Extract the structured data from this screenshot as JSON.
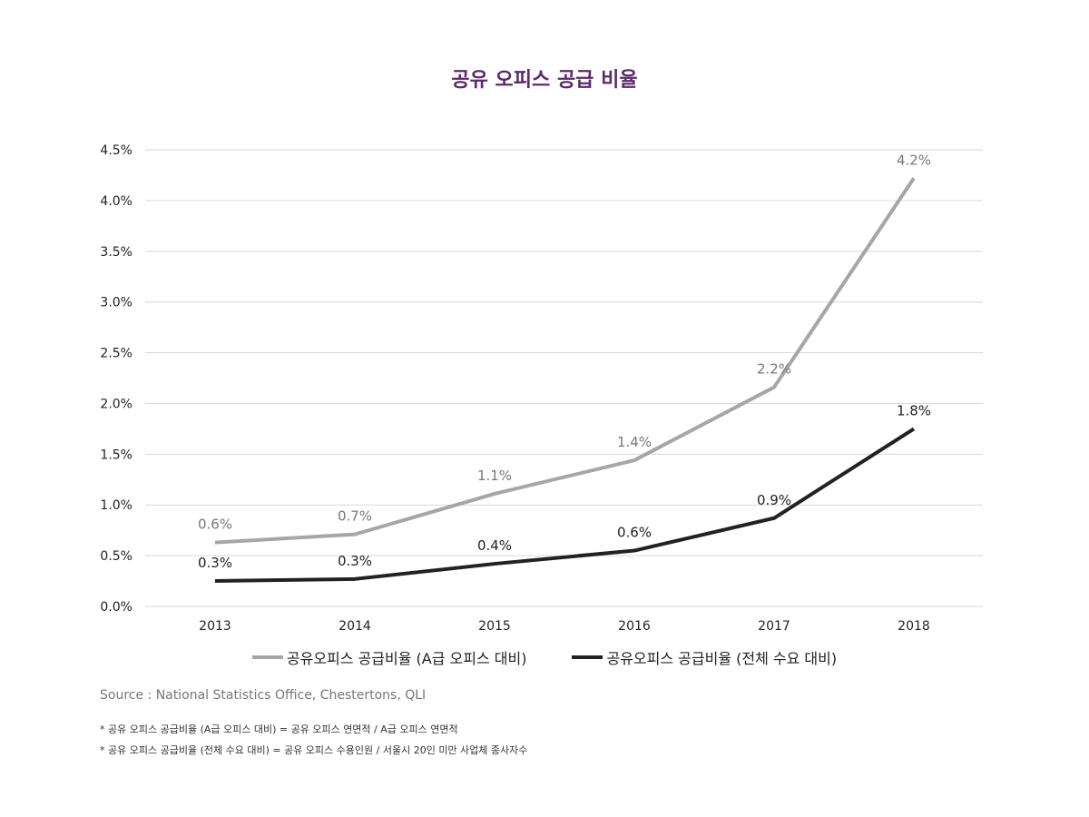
{
  "chart_data": {
    "type": "line",
    "title": "공유 오피스 공급 비율",
    "categories": [
      "2013",
      "2014",
      "2015",
      "2016",
      "2017",
      "2018"
    ],
    "ylim": [
      0,
      4.5
    ],
    "yticks": [
      "0.0%",
      "0.5%",
      "1.0%",
      "1.5%",
      "2.0%",
      "2.5%",
      "3.0%",
      "3.5%",
      "4.0%",
      "4.5%"
    ],
    "grid": true,
    "legend_position": "bottom",
    "series": [
      {
        "name": "공유오피스 공급비율 (A급 오피스 대비)",
        "color": "#a6a6a6",
        "values": [
          0.63,
          0.71,
          1.11,
          1.44,
          2.16,
          4.22
        ],
        "labels": [
          "0.6%",
          "0.7%",
          "1.1%",
          "1.4%",
          "2.2%",
          "4.2%"
        ]
      },
      {
        "name": "공유오피스 공급비율 (전체 수요 대비)",
        "color": "#222222",
        "values": [
          0.25,
          0.27,
          0.42,
          0.55,
          0.87,
          1.75
        ],
        "labels": [
          "0.3%",
          "0.3%",
          "0.4%",
          "0.6%",
          "0.9%",
          "1.8%"
        ]
      }
    ]
  },
  "source": "Source : National Statistics Office, Chestertons, QLI",
  "notes": [
    "* 공유 오피스 공급비율 (A급 오피스 대비) = 공유 오피스 연면적 / A급 오피스 연면적",
    "* 공유 오피스 공급비율 (전체 수요 대비) = 공유 오피스 수용인원 / 서울시 20인 미만 사업체 종사자수"
  ]
}
